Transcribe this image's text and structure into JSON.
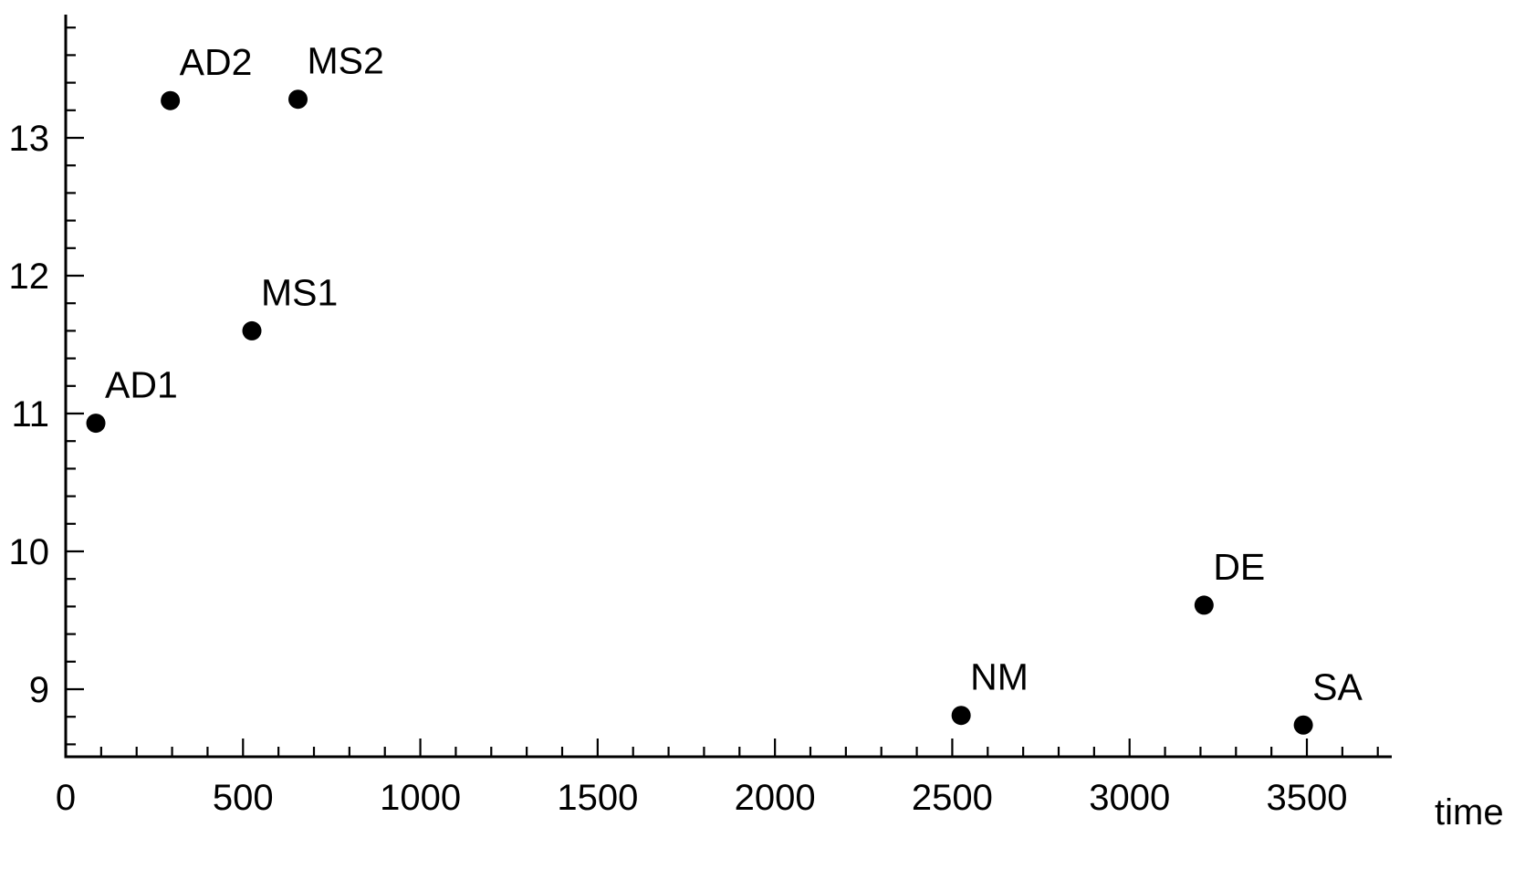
{
  "chart_data": {
    "type": "scatter",
    "title": "",
    "xlabel": "time",
    "ylabel": "",
    "xlim": [
      0,
      3700
    ],
    "ylim": [
      8.5,
      13.9
    ],
    "x_ticks": [
      0,
      500,
      1000,
      1500,
      2000,
      2500,
      3000,
      3500
    ],
    "x_tick_labels": [
      "0",
      "500",
      "1000",
      "1500",
      "2000",
      "2500",
      "3000",
      "3500"
    ],
    "x_minor_step": 100,
    "y_ticks": [
      9,
      10,
      11,
      12,
      13
    ],
    "y_tick_labels": [
      "9",
      "10",
      "11",
      "12",
      "13"
    ],
    "y_minor_step": 0.2,
    "grid": false,
    "legend": "none",
    "point_color": "#000000",
    "points": [
      {
        "label": "AD1",
        "x": 85,
        "y": 10.93
      },
      {
        "label": "AD2",
        "x": 295,
        "y": 13.27
      },
      {
        "label": "MS1",
        "x": 525,
        "y": 11.6
      },
      {
        "label": "MS2",
        "x": 655,
        "y": 13.28
      },
      {
        "label": "NM",
        "x": 2525,
        "y": 8.81
      },
      {
        "label": "DE",
        "x": 3210,
        "y": 9.61
      },
      {
        "label": "SA",
        "x": 3490,
        "y": 8.74
      }
    ]
  }
}
